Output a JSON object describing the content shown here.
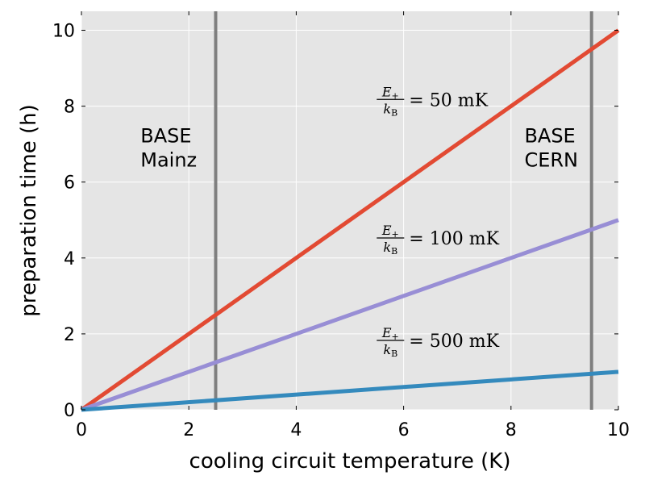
{
  "chart_data": {
    "type": "line",
    "xlabel": "cooling circuit temperature (K)",
    "ylabel": "preparation time (h)",
    "xlim": [
      0,
      10
    ],
    "ylim": [
      0,
      10.5
    ],
    "xticks": [
      0,
      2,
      4,
      6,
      8,
      10
    ],
    "yticks": [
      0,
      2,
      4,
      6,
      8,
      10
    ],
    "xtick_labels": [
      "0",
      "2",
      "4",
      "6",
      "8",
      "10"
    ],
    "ytick_labels": [
      "0",
      "2",
      "4",
      "6",
      "8",
      "10"
    ],
    "grid": true,
    "series": [
      {
        "name": "E+/kB = 50 mK",
        "color": "#e24a33",
        "x": [
          0,
          10
        ],
        "y": [
          0,
          10
        ],
        "annotation": {
          "num": "E",
          "num_sub": "+",
          "den": "k",
          "den_sub": "B",
          "value": "= 50 mK",
          "x": 5.5,
          "y": 8.05
        }
      },
      {
        "name": "E+/kB = 100 mK",
        "color": "#988ed5",
        "x": [
          0,
          10
        ],
        "y": [
          0,
          5
        ],
        "annotation": {
          "num": "E",
          "num_sub": "+",
          "den": "k",
          "den_sub": "B",
          "value": "= 100 mK",
          "x": 5.5,
          "y": 4.4
        }
      },
      {
        "name": "E+/kB = 500 mK",
        "color": "#348abd",
        "x": [
          0,
          10
        ],
        "y": [
          0,
          1
        ],
        "annotation": {
          "num": "E",
          "num_sub": "+",
          "den": "k",
          "den_sub": "B",
          "value": "= 500 mK",
          "x": 5.5,
          "y": 1.7
        }
      }
    ],
    "vlines": [
      {
        "name": "base-mainz",
        "x": 2.5,
        "color": "#7f7f7f",
        "label_lines": [
          "BASE",
          "Mainz"
        ],
        "label_x": 1.1,
        "label_y": 7.05
      },
      {
        "name": "base-cern",
        "x": 9.5,
        "color": "#7f7f7f",
        "label_lines": [
          "BASE",
          "CERN"
        ],
        "label_x": 8.25,
        "label_y": 7.05
      }
    ]
  }
}
